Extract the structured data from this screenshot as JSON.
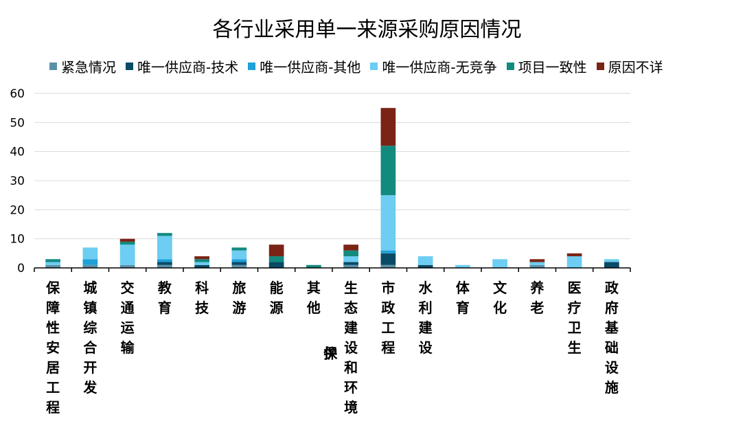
{
  "chart_data": {
    "type": "bar",
    "stacked": true,
    "title": "各行业采用单一来源采购原因情况",
    "xlabel": "",
    "ylabel": "",
    "ylim": [
      0,
      60
    ],
    "yticks": [
      "0",
      "10",
      "20",
      "30",
      "40",
      "50",
      "60"
    ],
    "grid": true,
    "legend_position": "top",
    "categories": [
      "保障性安居工程",
      "城镇综合开发",
      "交通运输",
      "教育",
      "科技",
      "旅游",
      "能源",
      "其他",
      "生态建设和环境保护",
      "市政工程",
      "水利建设",
      "体育",
      "文化",
      "养老",
      "医疗卫生",
      "政府基础设施"
    ],
    "series": [
      {
        "name": "紧急情况",
        "color": "#5b8fa8",
        "values": [
          1,
          1,
          1,
          1,
          0,
          1,
          0,
          0,
          1,
          1,
          0,
          0,
          0,
          1,
          0,
          0
        ]
      },
      {
        "name": "唯一供应商-技术",
        "color": "#0a4a66",
        "values": [
          0,
          0,
          0,
          1,
          1,
          1,
          2,
          0,
          1,
          4,
          1,
          0,
          0,
          0,
          0,
          2
        ]
      },
      {
        "name": "唯一供应商-其他",
        "color": "#1fa0d8",
        "values": [
          0,
          2,
          0,
          1,
          0,
          1,
          0,
          0,
          0,
          1,
          0,
          0,
          0,
          0,
          0,
          0
        ]
      },
      {
        "name": "唯一供应商-无竞争",
        "color": "#6dcdf2",
        "values": [
          1,
          4,
          7,
          8,
          1,
          3,
          0,
          0,
          2,
          19,
          3,
          1,
          3,
          1,
          4,
          1
        ]
      },
      {
        "name": "项目一致性",
        "color": "#128a7e",
        "values": [
          1,
          0,
          1,
          1,
          1,
          1,
          2,
          1,
          2,
          17,
          0,
          0,
          0,
          0,
          0,
          0
        ]
      },
      {
        "name": "原因不详",
        "color": "#7b2416",
        "values": [
          0,
          0,
          1,
          0,
          1,
          0,
          4,
          0,
          2,
          13,
          0,
          0,
          0,
          1,
          1,
          0
        ]
      }
    ]
  }
}
